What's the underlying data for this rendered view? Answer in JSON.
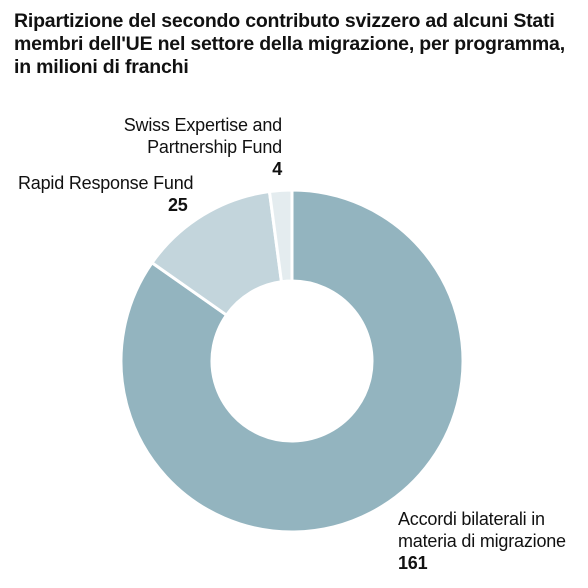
{
  "chart_data": {
    "type": "pie",
    "variant": "donut",
    "title_lines": [
      "Ripartizione del secondo contributo svizzero ad alcuni Stati",
      "membri dell'UE nel settore della migrazione, per programma,",
      "in milioni di franchi"
    ],
    "slices": [
      {
        "label_lines": [
          "Accordi bilaterali in",
          "materia di migrazione"
        ],
        "value": 161,
        "color": "#93b4bf"
      },
      {
        "label_lines": [
          "Rapid Response Fund"
        ],
        "value": 25,
        "color": "#c3d5dc"
      },
      {
        "label_lines": [
          "Swiss Expertise and",
          "Partnership Fund"
        ],
        "value": 4,
        "color": "#e4ecef"
      }
    ]
  }
}
